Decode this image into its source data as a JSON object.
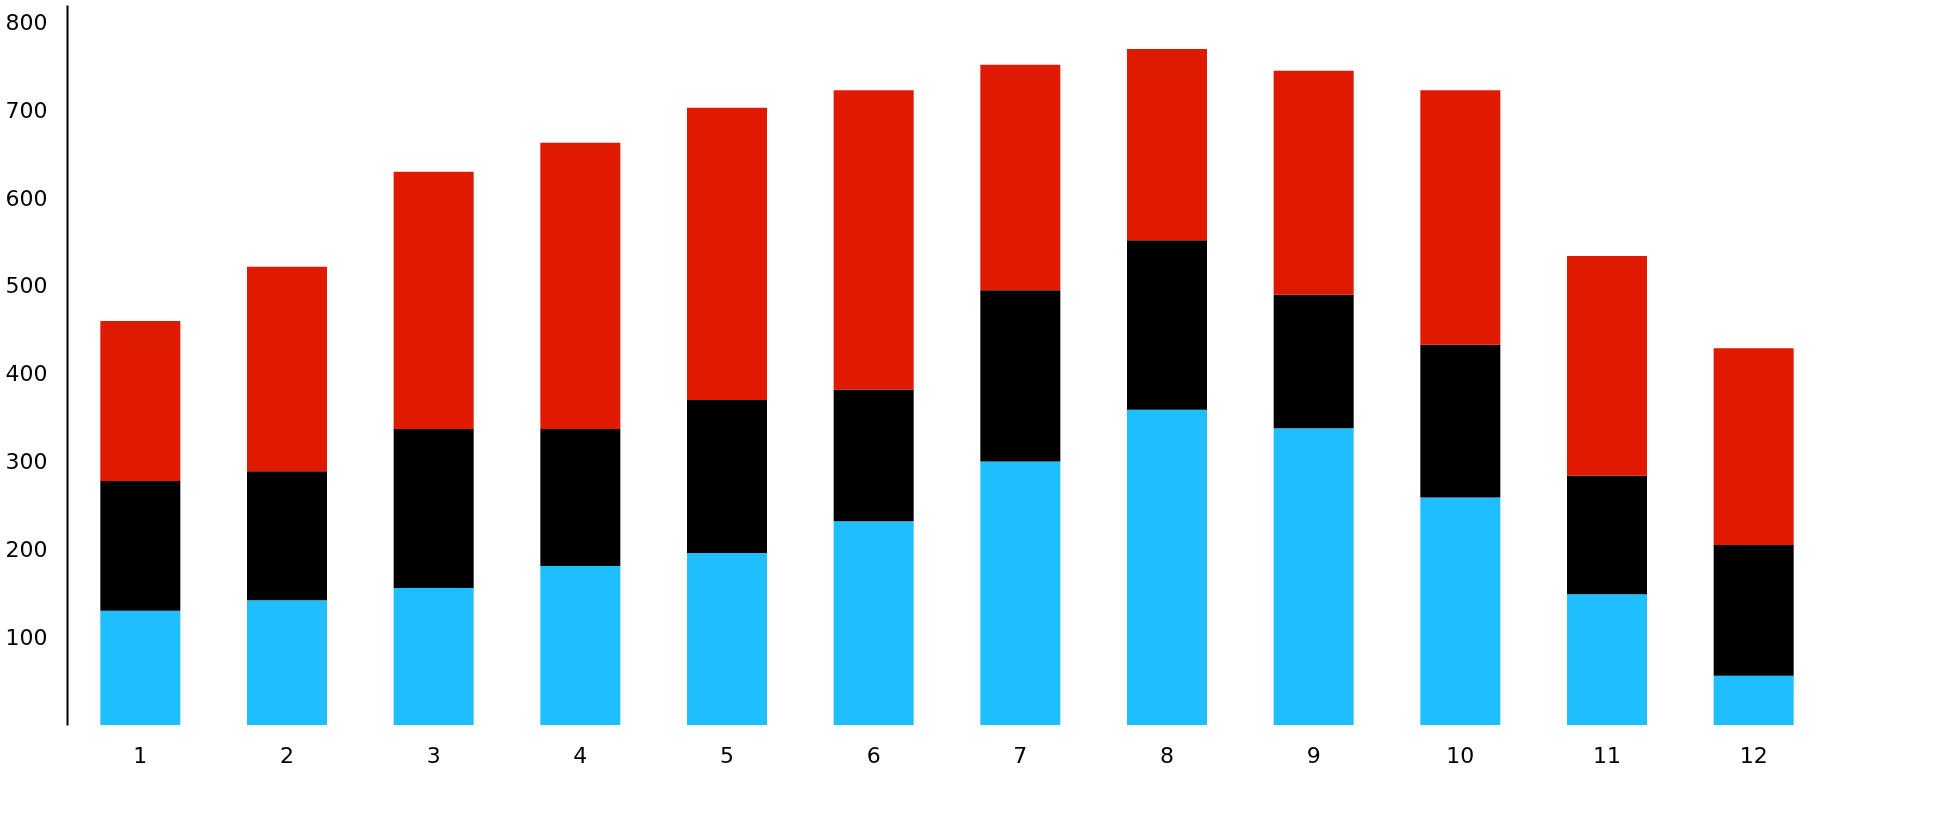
{
  "chart_data": {
    "type": "bar",
    "stacked": true,
    "categories": [
      "1",
      "2",
      "3",
      "4",
      "5",
      "6",
      "7",
      "8",
      "9",
      "10",
      "11",
      "12"
    ],
    "series": [
      {
        "color": "#1fbfff",
        "values": [
          130,
          142,
          156,
          181,
          196,
          232,
          300,
          359,
          338,
          259,
          149,
          56
        ]
      },
      {
        "color": "#000000",
        "values": [
          148,
          147,
          181,
          156,
          174,
          150,
          195,
          193,
          152,
          174,
          135,
          149
        ]
      },
      {
        "color": "#e01a00",
        "values": [
          182,
          233,
          293,
          326,
          333,
          341,
          257,
          218,
          255,
          290,
          250,
          224
        ]
      }
    ],
    "ylim": [
      0,
      820
    ],
    "yticks": [
      100,
      200,
      300,
      400,
      500,
      600,
      700,
      800
    ],
    "grid": false,
    "legend": false
  }
}
